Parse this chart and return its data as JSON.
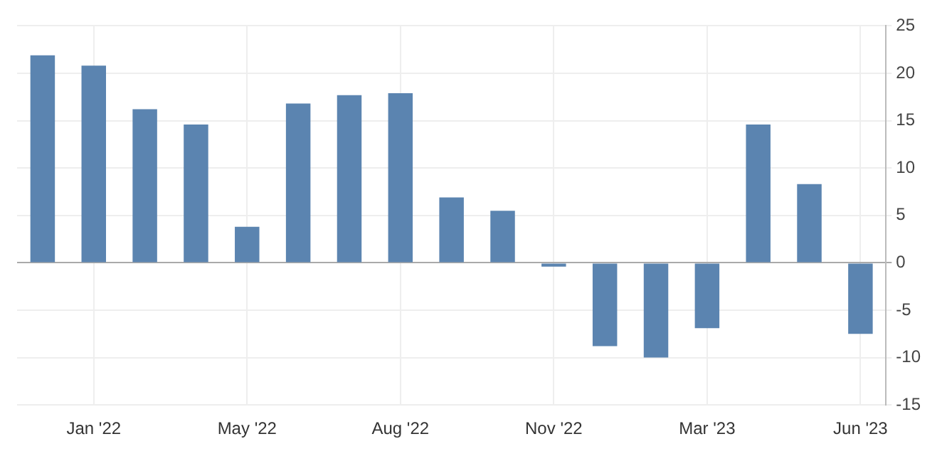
{
  "chart_data": {
    "type": "bar",
    "categories": [
      null,
      "Jan '22",
      null,
      null,
      "May '22",
      null,
      null,
      "Aug '22",
      null,
      null,
      "Nov '22",
      null,
      null,
      "Mar '23",
      null,
      null,
      "Jun '23"
    ],
    "values": [
      21.9,
      20.8,
      16.2,
      14.6,
      3.8,
      16.8,
      17.7,
      17.9,
      6.9,
      5.5,
      -0.4,
      -8.8,
      -10.0,
      -6.9,
      14.6,
      8.3,
      -7.5
    ],
    "color": "#5b84b0",
    "ylim": [
      -15,
      25
    ],
    "yticks": [
      -15,
      -10,
      -5,
      0,
      5,
      10,
      15,
      20,
      25
    ],
    "grid": true,
    "legend": false
  }
}
